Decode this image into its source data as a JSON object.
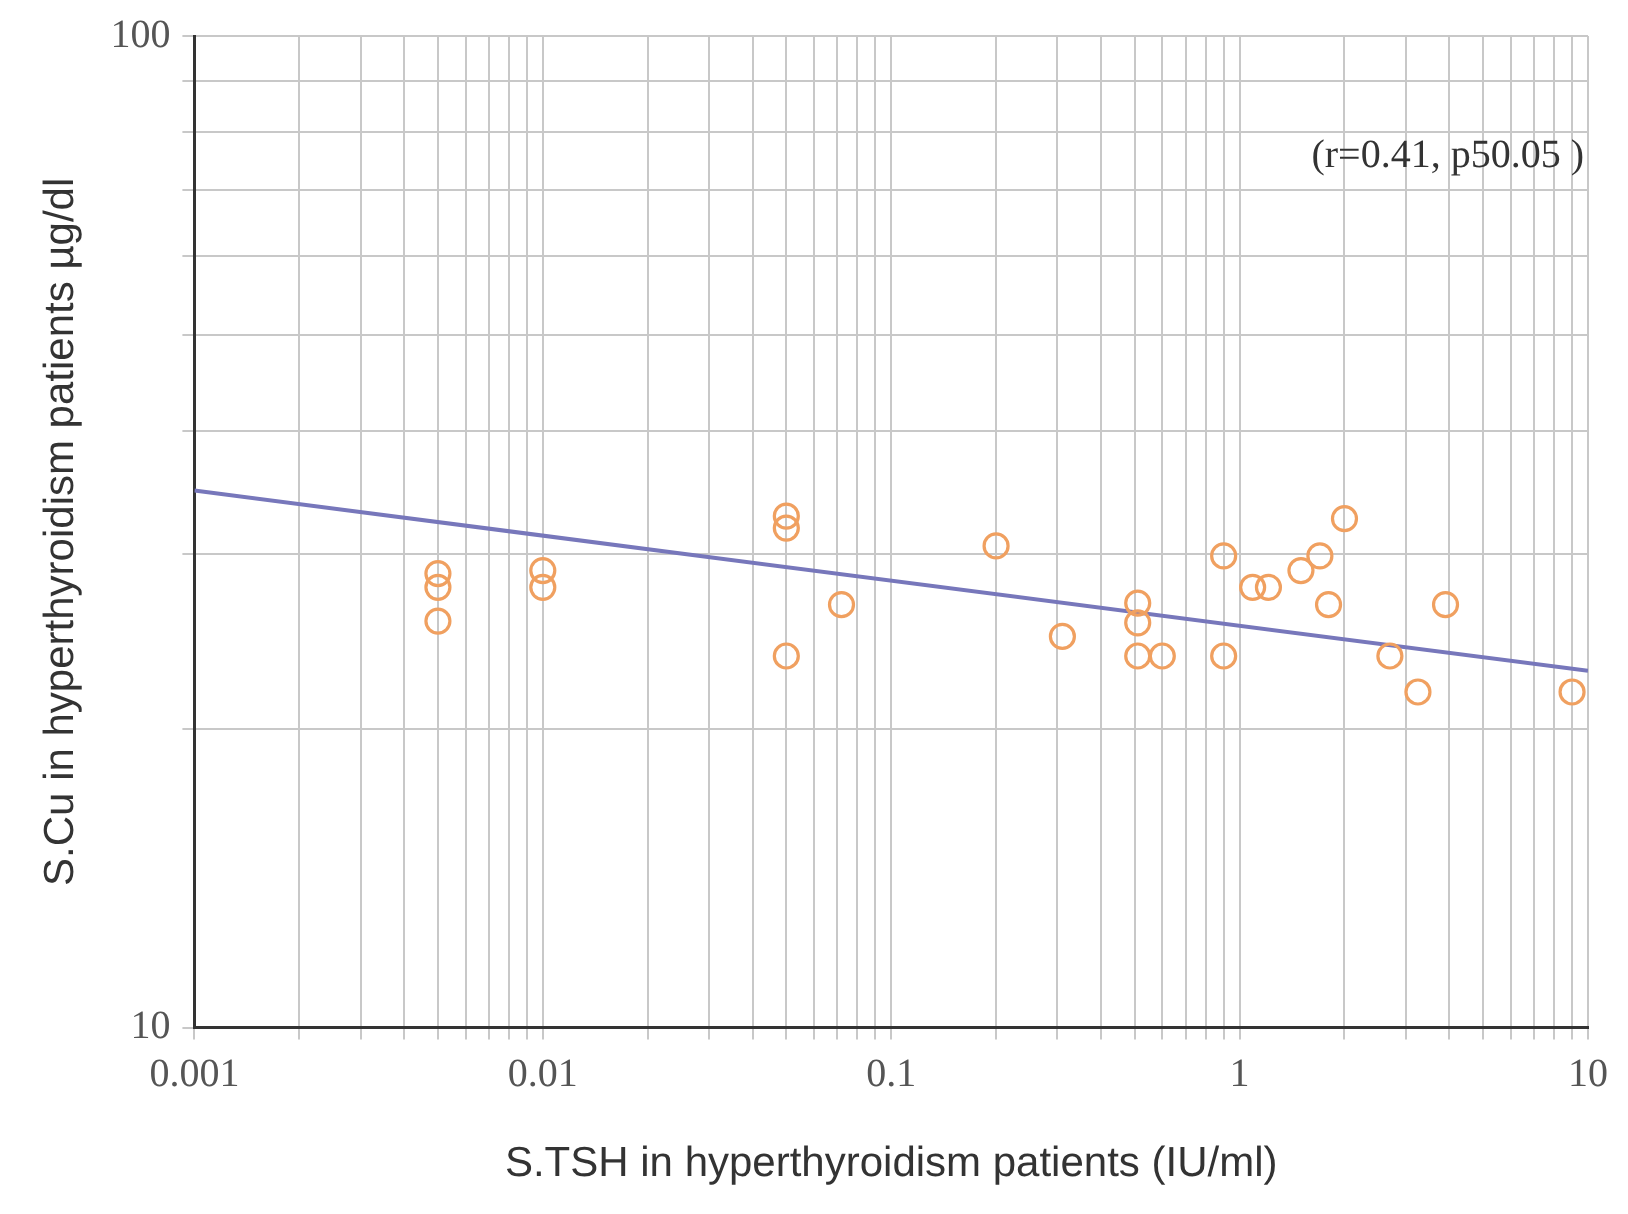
{
  "chart_data": {
    "type": "scatter",
    "xlabel": "S.TSH in hyperthyroidism patients (IU/ml)",
    "ylabel": "S.Cu in hyperthyroidism patients µg/dl",
    "annotations": [
      "(r=0.41, p50.05 )"
    ],
    "log": "xy",
    "grid": true,
    "legend": false,
    "xlim": [
      0.001,
      10
    ],
    "ylim": [
      10,
      100
    ],
    "xticks": [
      0.001,
      {
        "value": 0.002,
        "label": null
      },
      {
        "value": 0.003,
        "label": null
      },
      {
        "value": 0.004,
        "label": null
      },
      {
        "value": 0.005,
        "label": null
      },
      {
        "value": 0.006,
        "label": null
      },
      {
        "value": 0.007,
        "label": null
      },
      {
        "value": 0.008,
        "label": null
      },
      {
        "value": 0.009,
        "label": null
      },
      0.01,
      {
        "value": 0.02,
        "label": null
      },
      {
        "value": 0.03,
        "label": null
      },
      {
        "value": 0.04,
        "label": null
      },
      {
        "value": 0.05,
        "label": null
      },
      {
        "value": 0.06,
        "label": null
      },
      {
        "value": 0.07,
        "label": null
      },
      {
        "value": 0.08,
        "label": null
      },
      {
        "value": 0.09,
        "label": null
      },
      0.1,
      {
        "value": 0.2,
        "label": null
      },
      {
        "value": 0.3,
        "label": null
      },
      {
        "value": 0.4,
        "label": null
      },
      {
        "value": 0.5,
        "label": null
      },
      {
        "value": 0.6,
        "label": null
      },
      {
        "value": 0.7,
        "label": null
      },
      {
        "value": 0.8,
        "label": null
      },
      {
        "value": 0.9,
        "label": null
      },
      1,
      {
        "value": 2,
        "label": null
      },
      {
        "value": 3,
        "label": null
      },
      {
        "value": 4,
        "label": null
      },
      {
        "value": 5,
        "label": null
      },
      {
        "value": 6,
        "label": null
      },
      {
        "value": 7,
        "label": null
      },
      {
        "value": 8,
        "label": null
      },
      {
        "value": 9,
        "label": null
      },
      10
    ],
    "yticks": [
      10,
      {
        "value": 20,
        "label": null
      },
      {
        "value": 30,
        "label": null
      },
      {
        "value": 40,
        "label": null
      },
      {
        "value": 50,
        "label": null
      },
      {
        "value": 60,
        "label": null
      },
      {
        "value": 70,
        "label": null
      },
      {
        "value": 80,
        "label": null
      },
      {
        "value": 90,
        "label": null
      },
      100
    ],
    "series": [
      {
        "marker": "circle",
        "color": "#f0a060",
        "x": [
          0.005,
          0.005,
          0.005,
          0.01,
          0.01,
          0.05,
          0.05,
          0.05,
          0.072,
          0.2,
          0.31,
          0.51,
          0.51,
          0.51,
          0.6,
          0.9,
          0.9,
          1.09,
          1.21,
          1.5,
          1.7,
          2.0,
          1.8,
          2.7,
          3.25,
          3.9,
          9.0
        ],
        "values": [
          28.7,
          27.8,
          25.7,
          28.9,
          27.8,
          32.8,
          31.9,
          23.7,
          26.7,
          30.6,
          24.8,
          26.8,
          25.6,
          23.7,
          23.7,
          29.9,
          23.7,
          27.8,
          27.8,
          28.9,
          29.9,
          32.6,
          26.7,
          23.7,
          21.8,
          26.7,
          21.8
        ]
      },
      {
        "type": "line",
        "marker": "none",
        "color": "#7777bb",
        "x": [
          0.001,
          10
        ],
        "values": [
          34.8,
          22.9
        ]
      }
    ]
  }
}
